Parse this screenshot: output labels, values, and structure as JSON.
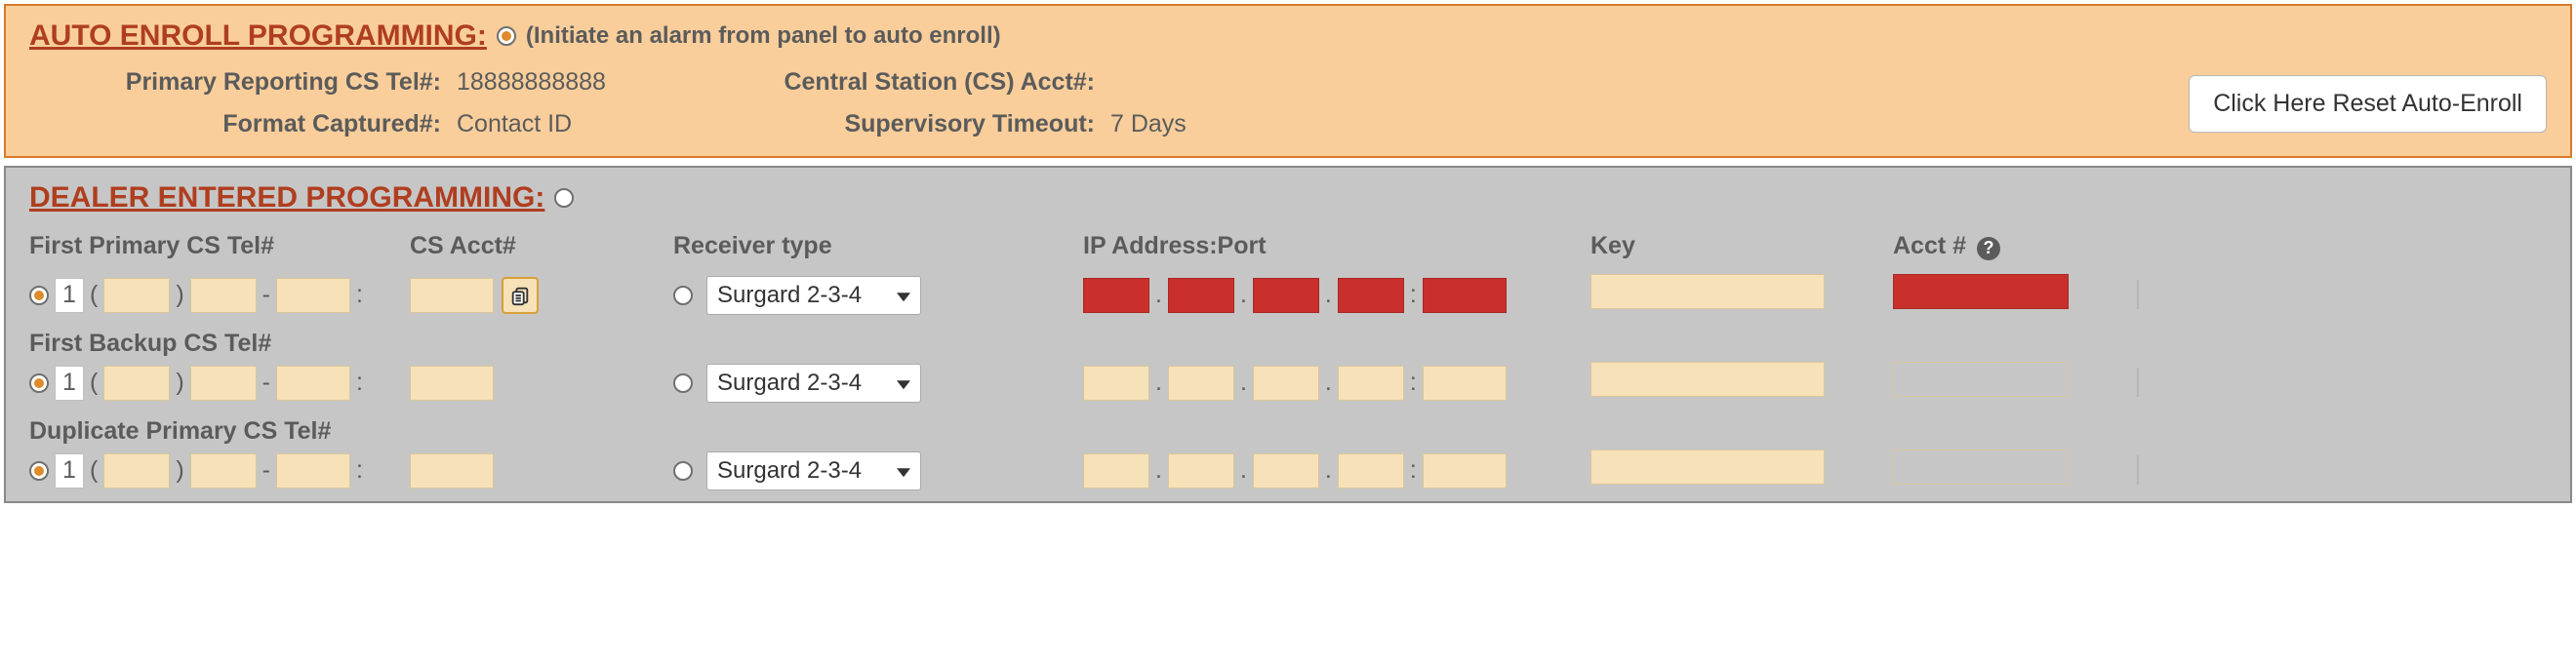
{
  "colors": {
    "auto_bg": "#f9ce9b",
    "auto_border": "#d97a28",
    "dealer_bg": "#c6c6c6",
    "dealer_border": "#888888",
    "title": "#af3e1f",
    "text": "#5b5b5b",
    "field_bg": "#f6e1b8",
    "field_border": "#d9c79a",
    "error_bg": "#c9302c",
    "error_border": "#a82824"
  },
  "auto_enroll": {
    "title": "AUTO ENROLL PROGRAMMING:",
    "selected": true,
    "hint": "(Initiate an alarm from panel to auto enroll)",
    "primary_tel_label": "Primary Reporting CS Tel#:",
    "primary_tel_value": "18888888888",
    "cs_acct_label": "Central Station (CS) Acct#:",
    "cs_acct_value": "",
    "format_label": "Format Captured#:",
    "format_value": "Contact ID",
    "supervisory_label": "Supervisory Timeout:",
    "supervisory_value": "7 Days",
    "reset_button": "Click Here Reset Auto-Enroll"
  },
  "dealer": {
    "title": "DEALER ENTERED PROGRAMMING:",
    "selected": false,
    "headers": {
      "first_primary_tel": "First Primary CS Tel#",
      "cs_acct": "CS Acct#",
      "receiver_type": "Receiver type",
      "ip_port": "IP Address:Port",
      "key": "Key",
      "acct": "Acct #"
    },
    "rows": [
      {
        "label": "First Primary CS Tel#",
        "tel_radio_checked": true,
        "cc_box": "1",
        "receiver_radio_checked": false,
        "receiver_value": "Surgard 2-3-4",
        "ip_error": true,
        "key_error": false,
        "acct_error": true,
        "show_clipboard": true,
        "acct_outline": false
      },
      {
        "label": "First Backup CS Tel#",
        "tel_radio_checked": true,
        "cc_box": "1",
        "receiver_radio_checked": false,
        "receiver_value": "Surgard 2-3-4",
        "ip_error": false,
        "key_error": false,
        "acct_error": false,
        "show_clipboard": false,
        "acct_outline": true
      },
      {
        "label": "Duplicate Primary CS Tel#",
        "tel_radio_checked": true,
        "cc_box": "1",
        "receiver_radio_checked": false,
        "receiver_value": "Surgard 2-3-4",
        "ip_error": false,
        "key_error": false,
        "acct_error": false,
        "show_clipboard": false,
        "acct_outline": true
      }
    ]
  }
}
